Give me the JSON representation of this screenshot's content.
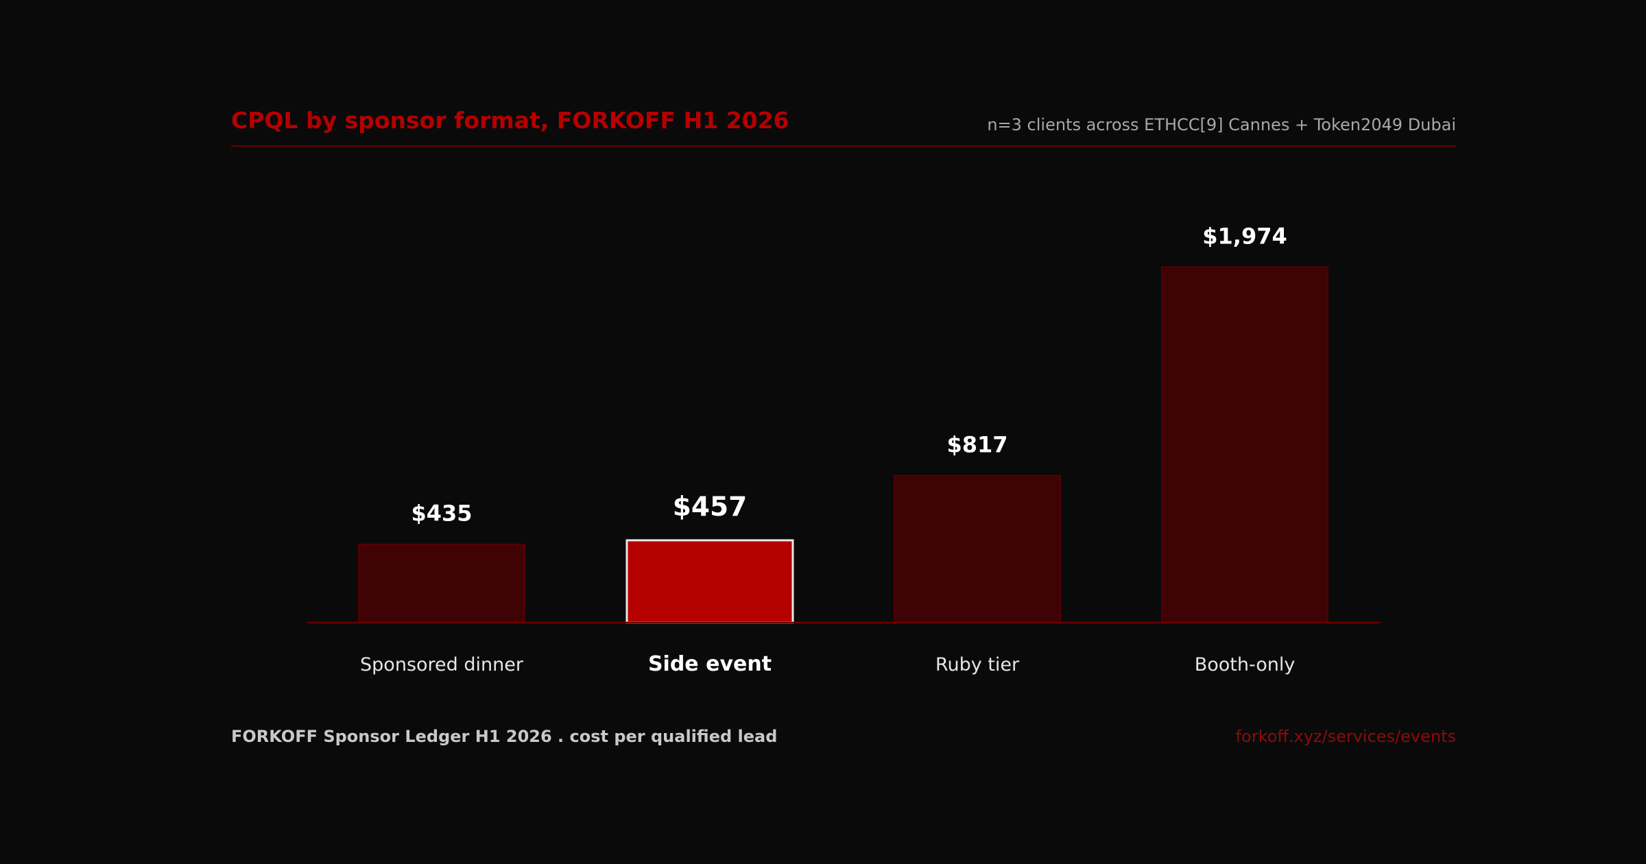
{
  "header": {
    "title": "CPQL by sponsor format, FORKOFF H1 2026",
    "subtitle": "n=3 clients across ETHCC[9] Cannes + Token2049 Dubai"
  },
  "footer": {
    "left": "FORKOFF Sponsor Ledger H1 2026 . cost per qualified lead",
    "right": "forkoff.xyz/services/events"
  },
  "colors": {
    "background": "#0a0a0a",
    "bar": "#3f0205",
    "bar_border": "#5e0000",
    "highlight_bar": "#b50000",
    "highlight_border": "#e8e8e8",
    "axis": "#6a0000",
    "label": "#ffffff"
  },
  "chart_data": {
    "type": "bar",
    "categories": [
      "Sponsored dinner",
      "Side event",
      "Ruby tier",
      "Booth-only"
    ],
    "values": [
      435,
      457,
      817,
      1974
    ],
    "value_labels": [
      "$435",
      "$457",
      "$817",
      "$1,974"
    ],
    "highlight_index": 1,
    "ylim": [
      0,
      2200
    ],
    "grid": false,
    "legend": "none"
  }
}
